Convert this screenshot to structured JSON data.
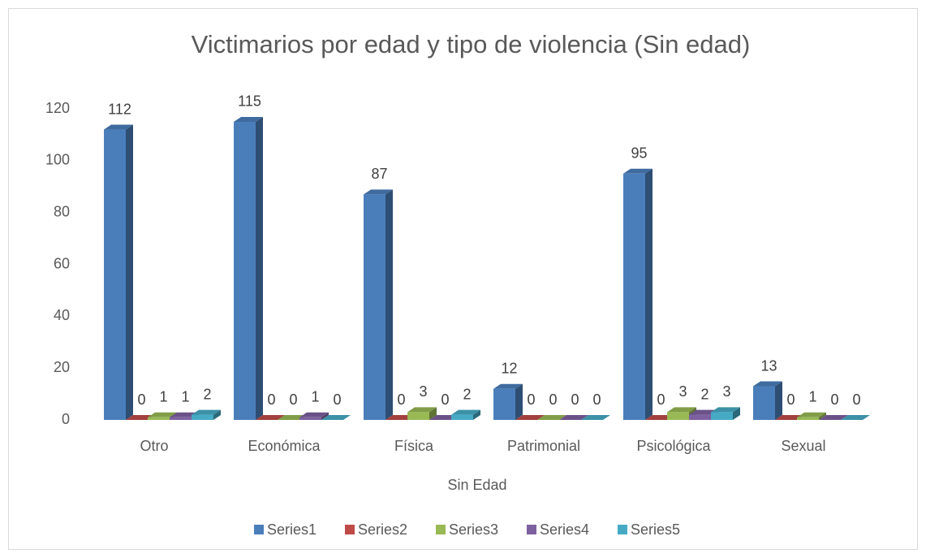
{
  "chart_data": {
    "type": "bar3d",
    "title": "Victimarios por edad y tipo de violencia (Sin edad)",
    "x_label": "Sin Edad",
    "categories": [
      "Otro",
      "Económica",
      "Física",
      "Patrimonial",
      "Psicológica",
      "Sexual"
    ],
    "series": [
      {
        "name": "Series1",
        "color": "#4a7ebb",
        "values": [
          112,
          115,
          87,
          12,
          95,
          13
        ]
      },
      {
        "name": "Series2",
        "color": "#be4b48",
        "values": [
          0,
          0,
          0,
          0,
          0,
          0
        ]
      },
      {
        "name": "Series3",
        "color": "#98b954",
        "values": [
          1,
          0,
          3,
          0,
          3,
          1
        ]
      },
      {
        "name": "Series4",
        "color": "#7d60a0",
        "values": [
          1,
          1,
          0,
          0,
          2,
          0
        ]
      },
      {
        "name": "Series5",
        "color": "#46aac5",
        "values": [
          2,
          0,
          2,
          0,
          3,
          0
        ]
      }
    ],
    "ylim": [
      0,
      120
    ],
    "yticks": [
      0,
      20,
      40,
      60,
      80,
      100,
      120
    ],
    "legend": "bottom"
  }
}
